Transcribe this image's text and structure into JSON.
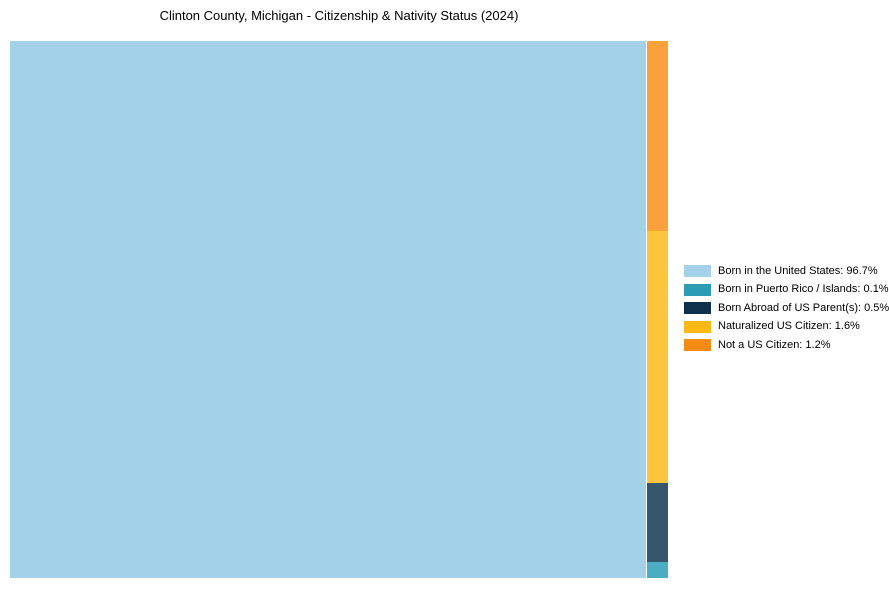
{
  "title": "Clinton County, Michigan - Citizenship & Nativity Status (2024)",
  "chart_data": {
    "type": "treemap",
    "title": "Clinton County, Michigan - Citizenship & Nativity Status (2024)",
    "unit": "%",
    "legend_position": "right",
    "items": [
      {
        "id": "born-in-us",
        "label": "Born in the United States",
        "value": 96.7,
        "display": "Born in the United States: 96.7%",
        "cell_color": "#a3d2e8",
        "legend_color": "#a3d2e8"
      },
      {
        "id": "born-puerto-rico",
        "label": "Born in Puerto Rico / Islands",
        "value": 0.1,
        "display": "Born in Puerto Rico / Islands: 0.1%",
        "cell_color": "#4badc1",
        "legend_color": "#2b9cb4"
      },
      {
        "id": "born-abroad",
        "label": "Born Abroad of US Parent(s)",
        "value": 0.5,
        "display": "Born Abroad of US Parent(s): 0.5%",
        "cell_color": "#35566b",
        "legend_color": "#0e324c"
      },
      {
        "id": "naturalized",
        "label": "Naturalized US Citizen",
        "value": 1.6,
        "display": "Naturalized US Citizen: 1.6%",
        "cell_color": "#fdc53e",
        "legend_color": "#fcb813"
      },
      {
        "id": "not-citizen",
        "label": "Not a US Citizen",
        "value": 1.2,
        "display": "Not a US Citizen: 1.2%",
        "cell_color": "#f9a13c",
        "legend_color": "#f68b14"
      }
    ]
  }
}
